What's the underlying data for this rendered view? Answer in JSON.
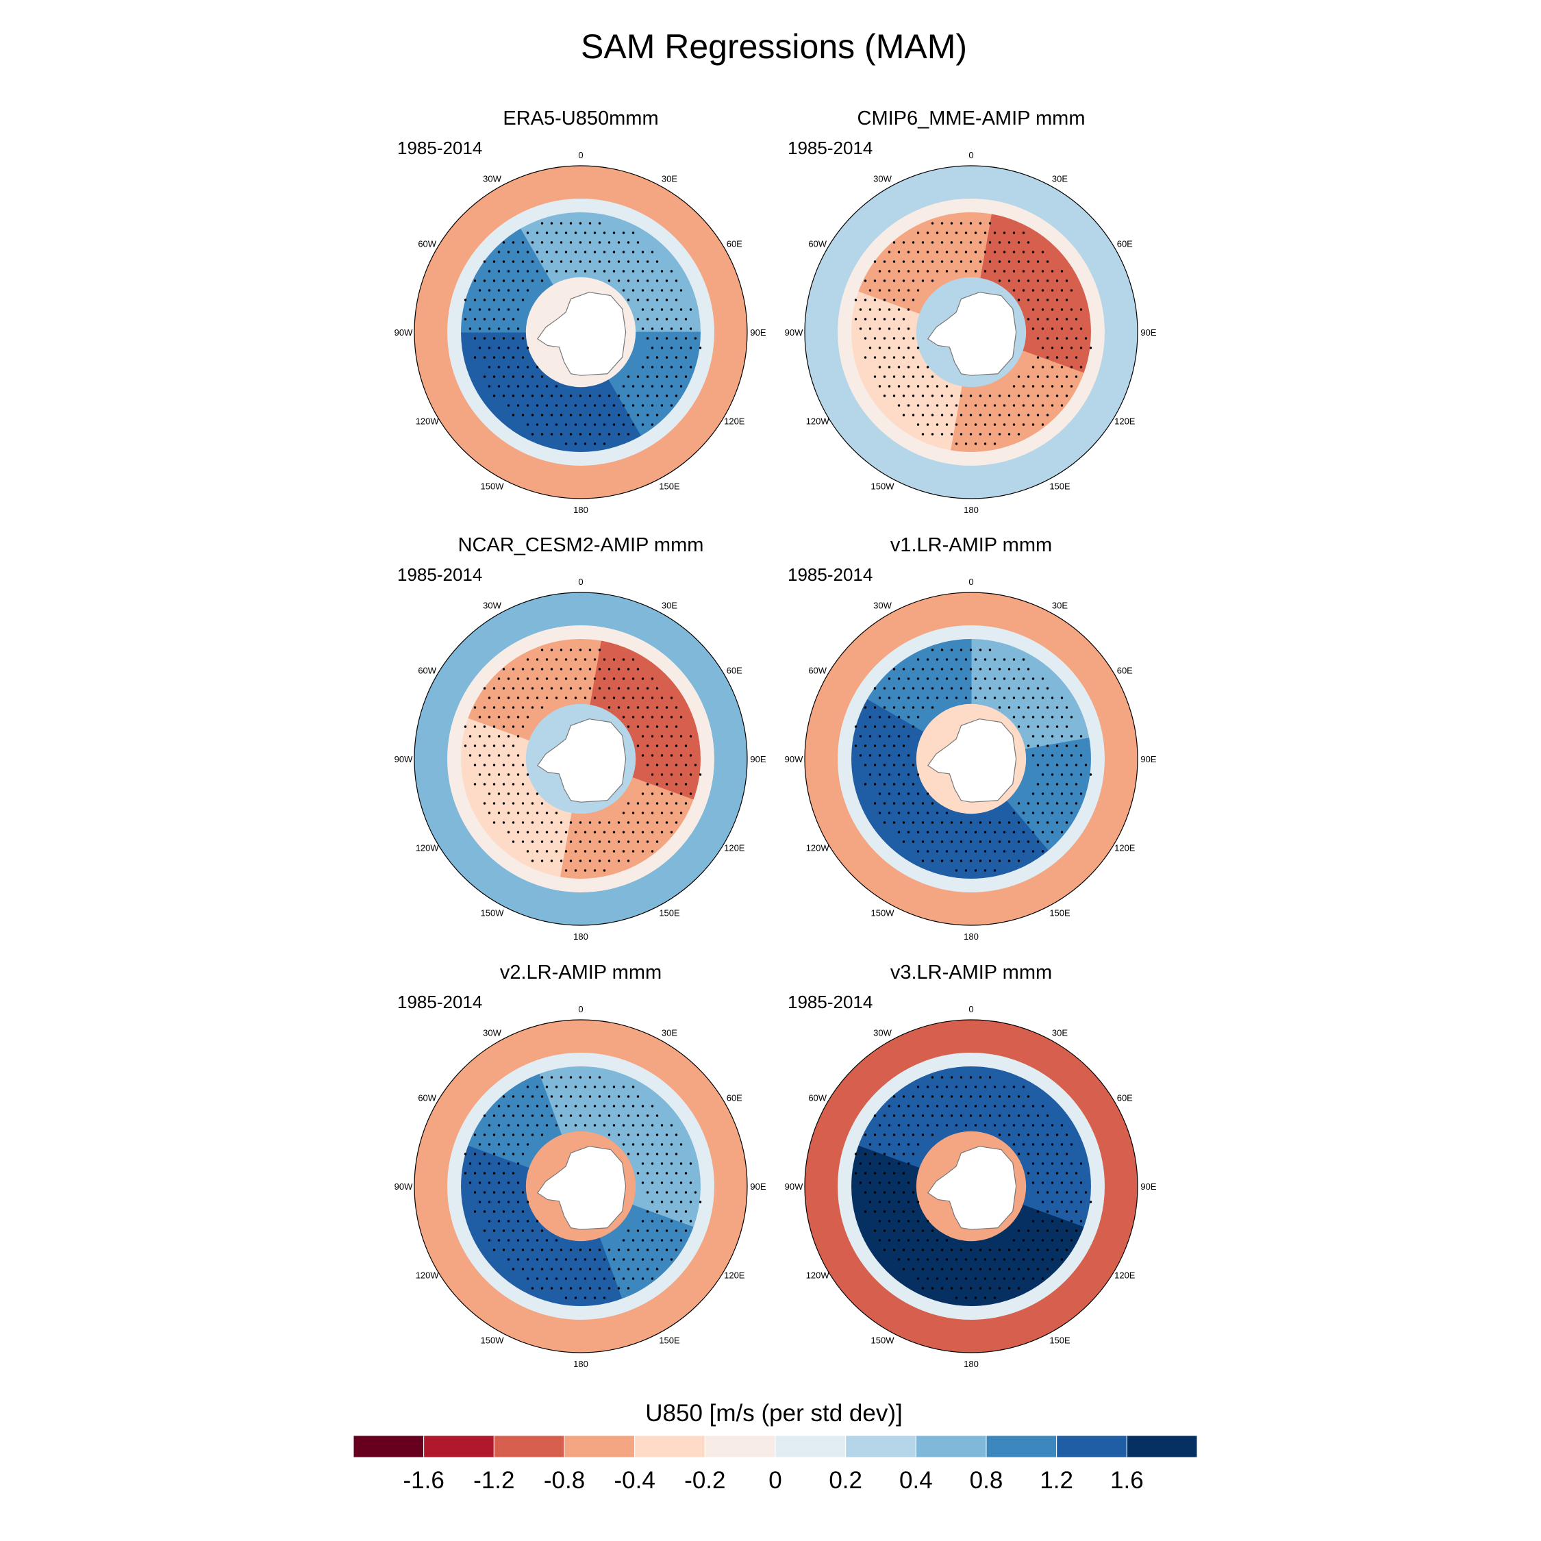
{
  "chart_data": {
    "type": "heatmap",
    "title": "SAM Regressions (MAM)",
    "projection": "south polar stereographic",
    "longitude_labels": [
      "0",
      "30E",
      "60E",
      "90E",
      "120E",
      "150E",
      "180",
      "150W",
      "120W",
      "90W",
      "60W",
      "30W"
    ],
    "panels": [
      {
        "title": "ERA5-U850mmm",
        "period": "1985-2014",
        "pattern": {
          "polar_annulus": {
            "center_value": 1.0,
            "amplitude": 0.4,
            "phase_lon": 210
          },
          "midlat_ring": {
            "value": -0.6
          },
          "polar_cap": {
            "value": -0.2
          }
        }
      },
      {
        "title": "CMIP6_MME-AMIP  mmm",
        "period": "1985-2014",
        "pattern": {
          "polar_annulus": {
            "center_value": -0.6,
            "amplitude": 0.3,
            "phase_lon": 240
          },
          "midlat_ring": {
            "value": 0.3
          },
          "polar_cap": {
            "value": 0.3
          }
        }
      },
      {
        "title": "NCAR_CESM2-AMIP  mmm",
        "period": "1985-2014",
        "pattern": {
          "polar_annulus": {
            "center_value": -0.6,
            "amplitude": 0.3,
            "phase_lon": 240
          },
          "midlat_ring": {
            "value": 0.4
          },
          "polar_cap": {
            "value": 0.3
          }
        }
      },
      {
        "title": "v1.LR-AMIP  mmm",
        "period": "1985-2014",
        "pattern": {
          "polar_annulus": {
            "center_value": 1.1,
            "amplitude": 0.4,
            "phase_lon": 220
          },
          "midlat_ring": {
            "value": -0.7
          },
          "polar_cap": {
            "value": -0.4
          }
        }
      },
      {
        "title": "v2.LR-AMIP  mmm",
        "period": "1985-2014",
        "pattern": {
          "polar_annulus": {
            "center_value": 1.0,
            "amplitude": 0.5,
            "phase_lon": 225
          },
          "midlat_ring": {
            "value": -0.6
          },
          "polar_cap": {
            "value": -0.5
          }
        }
      },
      {
        "title": "v3.LR-AMIP  mmm",
        "period": "1985-2014",
        "pattern": {
          "polar_annulus": {
            "center_value": 1.6,
            "amplitude": 0.2,
            "phase_lon": 200
          },
          "midlat_ring": {
            "value": -1.1
          },
          "polar_cap": {
            "value": -0.6
          }
        }
      }
    ],
    "colorbar": {
      "title": "U850 [m/s (per std dev)]",
      "levels": [
        "-1.6",
        "-1.2",
        "-0.8",
        "-0.4",
        "-0.2",
        "0",
        "0.2",
        "0.4",
        "0.8",
        "1.2",
        "1.6"
      ],
      "level_values": [
        -1.6,
        -1.2,
        -0.8,
        -0.4,
        -0.2,
        0,
        0.2,
        0.4,
        0.8,
        1.2,
        1.6
      ],
      "colors": [
        "#67001f",
        "#b2182b",
        "#d6604d",
        "#f4a582",
        "#fddbc7",
        "#f7ece6",
        "#e1ecf3",
        "#b5d5e8",
        "#7fb8d9",
        "#3d87bf",
        "#1f5ea5",
        "#053061"
      ]
    },
    "land_color": "#ffffff",
    "stippling": "significance dots"
  }
}
